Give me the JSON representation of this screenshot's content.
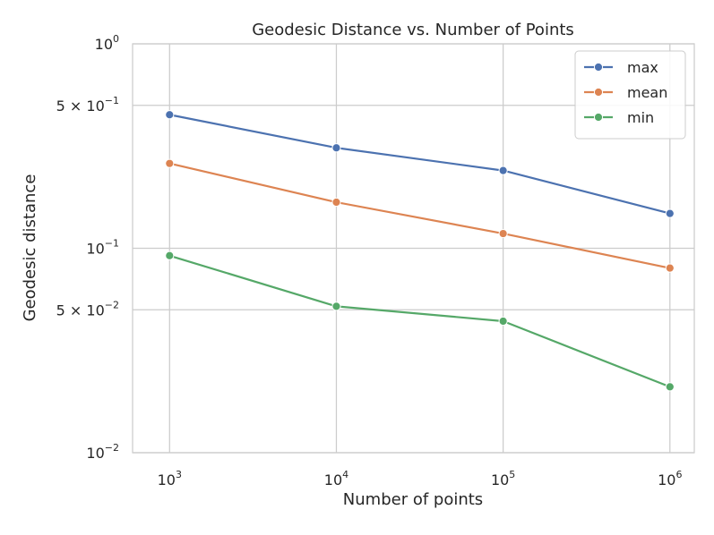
{
  "chart_data": {
    "type": "line",
    "title": "Geodesic Distance vs. Number of Points",
    "xlabel": "Number of points",
    "ylabel": "Geodesic distance",
    "xscale": "log",
    "yscale": "log",
    "x": [
      1000,
      10000,
      100000,
      1000000
    ],
    "xlim": [
      600,
      1400000
    ],
    "ylim": [
      0.01,
      1
    ],
    "x_ticks": [
      {
        "value": 1000,
        "base": "10",
        "exp": "3"
      },
      {
        "value": 10000,
        "base": "10",
        "exp": "4"
      },
      {
        "value": 100000,
        "base": "10",
        "exp": "5"
      },
      {
        "value": 1000000,
        "base": "10",
        "exp": "6"
      }
    ],
    "y_ticks": [
      {
        "value": 1,
        "base": "10",
        "exp": "0",
        "prefix": ""
      },
      {
        "value": 0.5,
        "base": "10",
        "exp": "−1",
        "prefix": "5 × "
      },
      {
        "value": 0.1,
        "base": "10",
        "exp": "−1",
        "prefix": ""
      },
      {
        "value": 0.05,
        "base": "10",
        "exp": "−2",
        "prefix": "5 × "
      },
      {
        "value": 0.01,
        "base": "10",
        "exp": "−2",
        "prefix": ""
      }
    ],
    "grid": true,
    "legend_position": "top-right",
    "series": [
      {
        "name": "max",
        "color": "#4c72b0",
        "values": [
          0.45,
          0.31,
          0.24,
          0.148
        ]
      },
      {
        "name": "mean",
        "color": "#dd8452",
        "values": [
          0.26,
          0.168,
          0.118,
          0.08
        ]
      },
      {
        "name": "min",
        "color": "#55a868",
        "values": [
          0.092,
          0.052,
          0.044,
          0.021
        ]
      }
    ]
  }
}
